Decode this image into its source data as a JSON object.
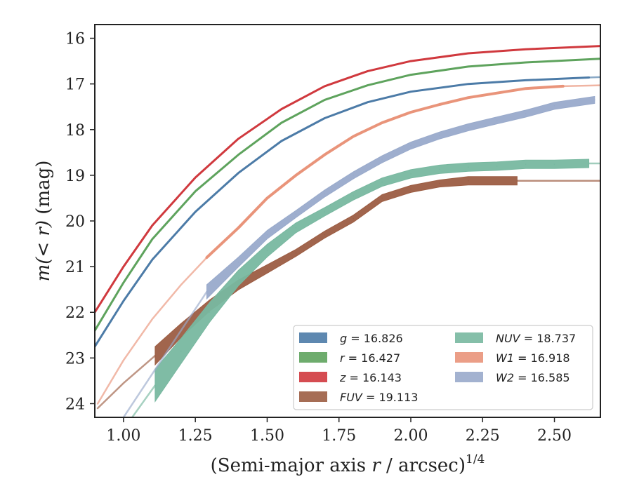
{
  "chart_data": {
    "type": "line",
    "title": "",
    "xlabel": "(Semi-major axis r / arcsec)^{1/4}",
    "xlabel_parts": {
      "base": "(Semi-major axis ",
      "var": "r",
      "mid": " / arcsec)",
      "exp": "1/4"
    },
    "ylabel": "m(< r) (mag)",
    "ylabel_parts": {
      "pre": "m",
      "inner": "(< r)",
      "unit": " (mag)"
    },
    "xlim": [
      0.9,
      2.66
    ],
    "ylim": [
      24.3,
      15.7
    ],
    "y_inverted": true,
    "x_ticks": [
      "1.00",
      "1.25",
      "1.50",
      "1.75",
      "2.00",
      "2.25",
      "2.50"
    ],
    "x_tick_values": [
      1.0,
      1.25,
      1.5,
      1.75,
      2.0,
      2.25,
      2.5
    ],
    "y_ticks": [
      "16",
      "17",
      "18",
      "19",
      "20",
      "21",
      "22",
      "23",
      "24"
    ],
    "y_tick_values": [
      16,
      17,
      18,
      19,
      20,
      21,
      22,
      23,
      24
    ],
    "grid": false,
    "legend_position": "bottom-right",
    "series": [
      {
        "name": "g = 16.826",
        "color": "#4c7ba7",
        "x": [
          0.9,
          1.0,
          1.1,
          1.25,
          1.4,
          1.55,
          1.7,
          1.85,
          2.0,
          2.2,
          2.4,
          2.62
        ],
        "y": [
          22.75,
          21.75,
          20.85,
          19.8,
          18.95,
          18.25,
          17.75,
          17.4,
          17.17,
          17.0,
          16.92,
          16.86
        ],
        "band_width": 3,
        "extension_x": [
          2.62,
          2.66
        ],
        "extension_y": [
          16.86,
          16.85
        ]
      },
      {
        "name": "r = 16.427",
        "color": "#5ea35d",
        "x": [
          0.9,
          1.0,
          1.1,
          1.25,
          1.4,
          1.55,
          1.7,
          1.85,
          2.0,
          2.2,
          2.4,
          2.66
        ],
        "y": [
          22.4,
          21.35,
          20.4,
          19.35,
          18.55,
          17.85,
          17.35,
          17.03,
          16.8,
          16.62,
          16.53,
          16.45
        ],
        "band_width": 3
      },
      {
        "name": "z = 16.143",
        "color": "#d0393e",
        "x": [
          0.9,
          1.0,
          1.1,
          1.25,
          1.4,
          1.55,
          1.7,
          1.85,
          2.0,
          2.2,
          2.4,
          2.66
        ],
        "y": [
          22.0,
          21.0,
          20.1,
          19.05,
          18.2,
          17.55,
          17.05,
          16.72,
          16.5,
          16.33,
          16.24,
          16.17
        ],
        "band_width": 3
      },
      {
        "name": "FUV = 19.113",
        "color": "#9c5d43",
        "x": [
          1.11,
          1.2,
          1.3,
          1.4,
          1.5,
          1.6,
          1.7,
          1.8,
          1.9,
          2.0,
          2.1,
          2.2,
          2.37
        ],
        "y": [
          22.95,
          22.4,
          21.85,
          21.4,
          21.05,
          20.7,
          20.3,
          19.95,
          19.5,
          19.3,
          19.18,
          19.12,
          19.12
        ],
        "band_width": [
          26,
          20,
          16,
          14,
          12,
          10,
          10,
          10,
          10,
          10,
          10,
          12,
          12
        ],
        "extension_x": [
          0.91,
          1.0,
          1.11
        ],
        "extension_y": [
          24.1,
          23.55,
          22.95
        ],
        "tail_x": [
          2.37,
          2.66
        ],
        "tail_y": [
          19.12,
          19.12
        ]
      },
      {
        "name": "NUV = 18.737",
        "color": "#78b8a0",
        "x": [
          1.11,
          1.2,
          1.3,
          1.4,
          1.5,
          1.6,
          1.7,
          1.8,
          1.9,
          2.0,
          2.1,
          2.2,
          2.3,
          2.4,
          2.5,
          2.62
        ],
        "y": [
          23.6,
          22.85,
          22.0,
          21.25,
          20.65,
          20.15,
          19.8,
          19.45,
          19.15,
          18.97,
          18.87,
          18.82,
          18.8,
          18.76,
          18.76,
          18.74
        ],
        "band_width": [
          46,
          36,
          28,
          22,
          18,
          14,
          12,
          12,
          12,
          12,
          12,
          12,
          12,
          12,
          12,
          12
        ],
        "extension_x": [
          1.03,
          1.11
        ],
        "extension_y": [
          24.3,
          23.6
        ],
        "tail_x": [
          2.62,
          2.66
        ],
        "tail_y": [
          18.74,
          18.74
        ]
      },
      {
        "name": "W1 = 16.918",
        "color": "#e9947a",
        "x": [
          1.29,
          1.4,
          1.5,
          1.6,
          1.7,
          1.8,
          1.9,
          2.0,
          2.1,
          2.2,
          2.3,
          2.4,
          2.53
        ],
        "y": [
          20.8,
          20.15,
          19.5,
          19.0,
          18.55,
          18.15,
          17.85,
          17.62,
          17.45,
          17.3,
          17.2,
          17.1,
          17.05
        ],
        "band_width": 4,
        "extension_x": [
          0.91,
          1.0,
          1.1,
          1.2,
          1.29
        ],
        "extension_y": [
          24.0,
          23.05,
          22.15,
          21.4,
          20.8
        ],
        "tail_x": [
          2.53,
          2.66
        ],
        "tail_y": [
          17.05,
          17.03
        ]
      },
      {
        "name": "W2 = 16.585",
        "color": "#99aacb",
        "x": [
          1.29,
          1.4,
          1.5,
          1.6,
          1.7,
          1.8,
          1.9,
          2.0,
          2.1,
          2.2,
          2.3,
          2.4,
          2.5,
          2.64
        ],
        "y": [
          21.55,
          20.9,
          20.3,
          19.85,
          19.4,
          19.0,
          18.65,
          18.35,
          18.13,
          17.95,
          17.8,
          17.65,
          17.48,
          17.35
        ],
        "band_width": [
          20,
          14,
          12,
          10,
          10,
          10,
          10,
          10,
          10,
          10,
          10,
          10,
          10,
          10
        ],
        "extension_x": [
          1.0,
          1.1,
          1.2,
          1.29
        ],
        "extension_y": [
          24.3,
          23.35,
          22.4,
          21.55
        ]
      }
    ]
  }
}
